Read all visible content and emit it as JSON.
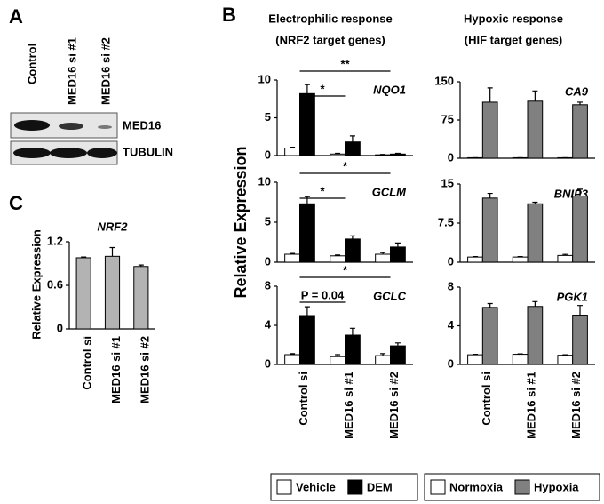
{
  "panel_labels": [
    "A",
    "B",
    "C"
  ],
  "blot": {
    "lanes": [
      "Control",
      "MED16 si #1",
      "MED16 si #2"
    ],
    "rows": [
      "MED16",
      "TUBULIN"
    ]
  },
  "panel_b": {
    "titles": [
      [
        "Electrophilic response",
        "(NRF2 target genes)"
      ],
      [
        "Hypoxic response",
        "(HIF target genes)"
      ]
    ],
    "y_label": "Relative Expression"
  },
  "chart_data": [
    {
      "type": "bar",
      "title": "NQO1",
      "ylim": [
        0,
        10
      ],
      "yticks": [
        0,
        5,
        10
      ],
      "annotations": [
        "*",
        "**"
      ],
      "series": [
        {
          "name": "Vehicle",
          "color": "#ffffff",
          "values": [
            1.0,
            0.2,
            0.1
          ],
          "errors": [
            0.1,
            0.1,
            0.05
          ]
        },
        {
          "name": "DEM",
          "color": "#000000",
          "values": [
            8.2,
            1.8,
            0.2
          ],
          "errors": [
            1.2,
            0.8,
            0.1
          ]
        }
      ]
    },
    {
      "type": "bar",
      "title": "GCLM",
      "ylim": [
        0,
        10
      ],
      "yticks": [
        0,
        5,
        10
      ],
      "annotations": [
        "*",
        "*"
      ],
      "series": [
        {
          "color": "#ffffff",
          "values": [
            1.0,
            0.8,
            1.0
          ],
          "errors": [
            0.1,
            0.1,
            0.2
          ]
        },
        {
          "color": "#000000",
          "values": [
            7.3,
            2.9,
            1.9
          ],
          "errors": [
            0.9,
            0.4,
            0.5
          ]
        }
      ]
    },
    {
      "type": "bar",
      "title": "GCLC",
      "ylim": [
        0,
        8
      ],
      "yticks": [
        0,
        4,
        8
      ],
      "annotations": [
        "P = 0.04",
        "*"
      ],
      "categories": [
        "Control si",
        "MED16 si #1",
        "MED16 si #2"
      ],
      "series": [
        {
          "color": "#ffffff",
          "values": [
            1.0,
            0.8,
            0.9
          ],
          "errors": [
            0.1,
            0.2,
            0.2
          ]
        },
        {
          "color": "#000000",
          "values": [
            5.0,
            3.0,
            1.9
          ],
          "errors": [
            0.9,
            0.7,
            0.3
          ]
        }
      ]
    },
    {
      "type": "bar",
      "title": "CA9",
      "ylim": [
        0,
        150
      ],
      "yticks": [
        0,
        75,
        150
      ],
      "series": [
        {
          "name": "Normoxia",
          "color": "#ffffff",
          "values": [
            1,
            1,
            1
          ],
          "errors": [
            0,
            0,
            0
          ]
        },
        {
          "name": "Hypoxia",
          "color": "#808080",
          "values": [
            110,
            112,
            105
          ],
          "errors": [
            28,
            20,
            5
          ]
        }
      ]
    },
    {
      "type": "bar",
      "title": "BNIP3",
      "ylim": [
        0,
        15
      ],
      "yticks": [
        0,
        7.5,
        15
      ],
      "series": [
        {
          "color": "#ffffff",
          "values": [
            1.0,
            1.0,
            1.3
          ],
          "errors": [
            0.1,
            0.1,
            0.2
          ]
        },
        {
          "color": "#808080",
          "values": [
            12.3,
            11.2,
            12.7
          ],
          "errors": [
            0.9,
            0.3,
            1.3
          ]
        }
      ]
    },
    {
      "type": "bar",
      "title": "PGK1",
      "ylim": [
        0,
        8
      ],
      "yticks": [
        0,
        4,
        8
      ],
      "categories": [
        "Control si",
        "MED16 si #1",
        "MED16 si #2"
      ],
      "series": [
        {
          "color": "#ffffff",
          "values": [
            1.0,
            1.05,
            0.95
          ],
          "errors": [
            0.05,
            0.05,
            0.05
          ]
        },
        {
          "color": "#808080",
          "values": [
            5.9,
            6.0,
            5.1
          ],
          "errors": [
            0.4,
            0.5,
            1.0
          ]
        }
      ]
    },
    {
      "type": "bar",
      "title": "NRF2",
      "y_label": "Relative Expression",
      "ylim": [
        0,
        1.2
      ],
      "yticks": [
        0,
        0.6,
        1.2
      ],
      "categories": [
        "Control si",
        "MED16 si #1",
        "MED16 si #2"
      ],
      "series": [
        {
          "color": "#b3b3b3",
          "values": [
            0.98,
            1.0,
            0.86
          ],
          "errors": [
            0.01,
            0.12,
            0.02
          ]
        }
      ]
    }
  ]
}
